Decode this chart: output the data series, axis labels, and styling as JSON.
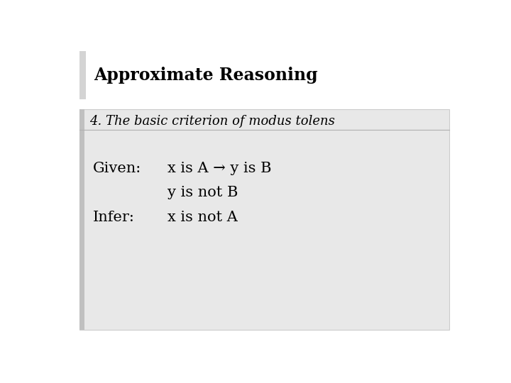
{
  "title": "Approximate Reasoning",
  "subtitle": "4. The basic criterion of modus tolens",
  "given_label": "Given:",
  "infer_label": "Infer:",
  "line1": "x is A → y is B",
  "line2": "y is not B",
  "line3": "x is not A",
  "bg_color": "#ffffff",
  "content_bg": "#e8e8e8",
  "left_bar_color": "#d4d4d4",
  "title_fontsize": 17,
  "subtitle_fontsize": 13,
  "body_fontsize": 15,
  "title_color": "#000000",
  "body_color": "#000000"
}
